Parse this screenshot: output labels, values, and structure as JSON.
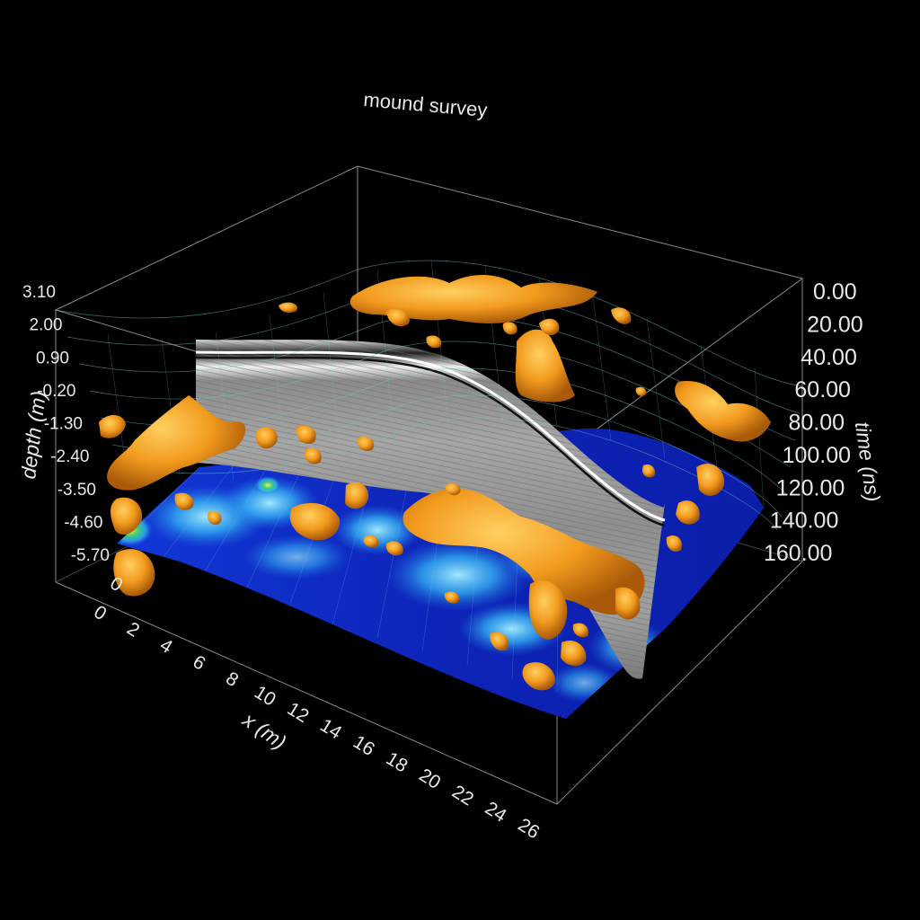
{
  "chart_data": {
    "type": "3d-volume",
    "title": "mound survey",
    "x_axis": {
      "label": "x (m)",
      "ticks": [
        "0",
        "2",
        "4",
        "6",
        "8",
        "10",
        "12",
        "14",
        "16",
        "18",
        "20",
        "22",
        "24",
        "26"
      ],
      "range": [
        0,
        26
      ]
    },
    "depth_axis": {
      "label": "depth (m)",
      "ticks": [
        "3.10",
        "2.00",
        "0.90",
        "-0.20",
        "-1.30",
        "-2.40",
        "-3.50",
        "-4.60",
        "-5.70"
      ],
      "range": [
        -5.7,
        3.1
      ]
    },
    "y_axis": {
      "ticks": [
        "0"
      ]
    },
    "time_axis": {
      "label": "time (ns)",
      "ticks": [
        "0.00",
        "20.00",
        "40.00",
        "60.00",
        "80.00",
        "100.00",
        "120.00",
        "140.00",
        "160.00"
      ],
      "range": [
        0,
        160
      ]
    },
    "layers": [
      {
        "name": "topography-surface",
        "color": "#5fb8b8"
      },
      {
        "name": "radargram-profile",
        "color": "#9a9a9a"
      },
      {
        "name": "amplitude-time-slice",
        "colors": [
          "#0a22b0",
          "#1f9cf0",
          "#8fe8ff",
          "#3dd26a",
          "#e8e040"
        ]
      },
      {
        "name": "isosurface-anomalies",
        "color": "#f29a1e"
      }
    ],
    "grid": false,
    "background": "#000000"
  }
}
